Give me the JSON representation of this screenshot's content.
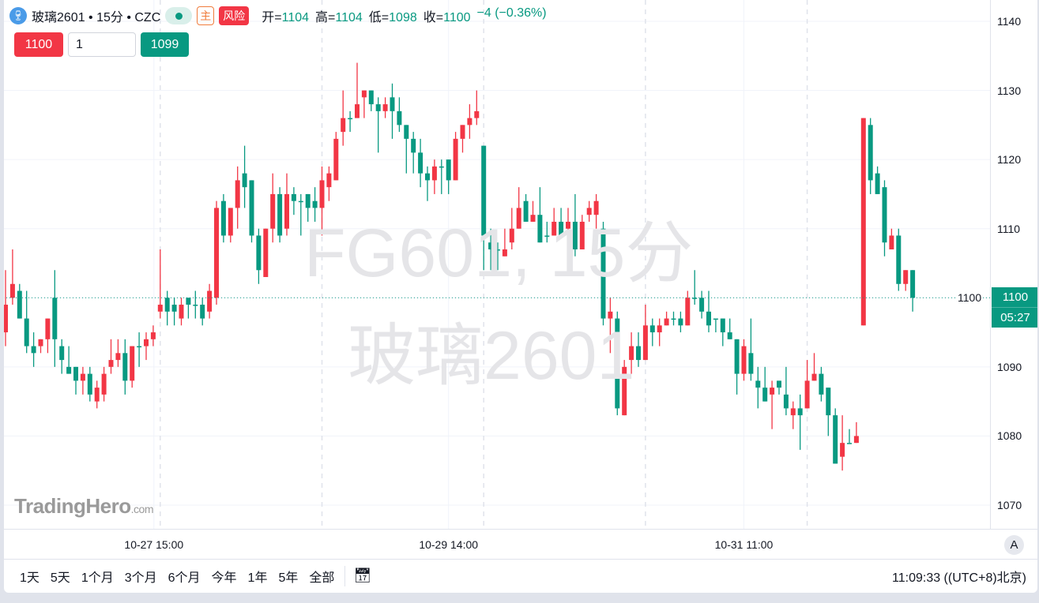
{
  "header": {
    "symbol_icon": "wine-glass-icon",
    "title": "玻璃2601 • 15分 • CZC",
    "main_badge": "主",
    "risk_badge": "风险",
    "ohlc": [
      {
        "label": "开=",
        "value": "1104"
      },
      {
        "label": "高=",
        "value": "1104"
      },
      {
        "label": "低=",
        "value": "1098"
      },
      {
        "label": "收=",
        "value": "1100"
      }
    ],
    "change": "−4 (−0.36%)"
  },
  "trade": {
    "sell_price": "1100",
    "quantity": "1",
    "buy_price": "1099"
  },
  "watermark": {
    "line1": "FG601, 15分",
    "line2": "玻璃2601"
  },
  "logo": {
    "name": "TradingHero",
    "suffix": ".com"
  },
  "price_axis": {
    "labels": [
      "1140",
      "1130",
      "1120",
      "1110",
      "1100",
      "1090",
      "1080",
      "1070"
    ],
    "current_price": "1100",
    "countdown": "05:27"
  },
  "time_axis": {
    "labels": [
      {
        "text": "10-27 15:00",
        "bar": 21.1
      },
      {
        "text": "10-29 14:00",
        "bar": 63
      },
      {
        "text": "10-31 11:00",
        "bar": 105
      }
    ],
    "auto_button": "A"
  },
  "footer": {
    "ranges": [
      "1天",
      "5天",
      "1个月",
      "3个月",
      "6个月",
      "今年",
      "1年",
      "5年",
      "全部"
    ],
    "date_range_icon": "calendar-arrow-icon",
    "clock": "11:09:33 ((UTC+8)北京)"
  },
  "colors": {
    "up": "#f23645",
    "down": "#089981",
    "last_price": "#089981"
  },
  "chart_data": {
    "type": "candlestick",
    "interval": "15分",
    "ylim": [
      1066.6,
      1143.1
    ],
    "yticks": [
      1070,
      1080,
      1090,
      1100,
      1110,
      1120,
      1130,
      1140
    ],
    "last_price": 1100,
    "grid": true,
    "ohlc_format": [
      "open",
      "high",
      "low",
      "close"
    ],
    "candles": [
      [
        1095,
        1104,
        1093,
        1099
      ],
      [
        1100,
        1107,
        1099,
        1102
      ],
      [
        1101,
        1102,
        1097,
        1097
      ],
      [
        1097,
        1101,
        1092,
        1093
      ],
      [
        1093,
        1095,
        1090,
        1092
      ],
      [
        1093,
        1094,
        1092,
        1094
      ],
      [
        1094,
        1097,
        1092,
        1097
      ],
      [
        1100,
        1104,
        1090,
        1094
      ],
      [
        1093,
        1094,
        1089,
        1091
      ],
      [
        1090,
        1093,
        1089,
        1089
      ],
      [
        1090,
        1090,
        1086,
        1088
      ],
      [
        1088,
        1090,
        1086,
        1089
      ],
      [
        1089,
        1090,
        1085,
        1086
      ],
      [
        1085,
        1088,
        1084,
        1087
      ],
      [
        1086,
        1090,
        1085,
        1089
      ],
      [
        1090,
        1094,
        1089,
        1091
      ],
      [
        1091,
        1094,
        1090,
        1092
      ],
      [
        1092,
        1094,
        1086,
        1088
      ],
      [
        1088,
        1093,
        1087,
        1093
      ],
      [
        1093,
        1095,
        1090,
        1093
      ],
      [
        1093,
        1095,
        1091,
        1094
      ],
      [
        1094,
        1096,
        1093,
        1095
      ],
      [
        1098,
        1107,
        1097,
        1099
      ],
      [
        1100,
        1101,
        1096,
        1098
      ],
      [
        1099,
        1100,
        1096,
        1098
      ],
      [
        1097,
        1100,
        1096,
        1099
      ],
      [
        1100,
        1100,
        1097,
        1099
      ],
      [
        1099,
        1101,
        1097,
        1099
      ],
      [
        1099,
        1100,
        1096,
        1097
      ],
      [
        1098,
        1102,
        1097,
        1101
      ],
      [
        1100,
        1114,
        1099,
        1113
      ],
      [
        1114,
        1115,
        1108,
        1109
      ],
      [
        1109,
        1113,
        1108,
        1113
      ],
      [
        1113,
        1119,
        1110,
        1117
      ],
      [
        1118,
        1122,
        1113,
        1116
      ],
      [
        1117,
        1117,
        1108,
        1109
      ],
      [
        1109,
        1110,
        1102,
        1104
      ],
      [
        1103,
        1110,
        1103,
        1110
      ],
      [
        1110,
        1118,
        1108,
        1115
      ],
      [
        1115,
        1116,
        1108,
        1109
      ],
      [
        1110,
        1118,
        1109,
        1115
      ],
      [
        1115,
        1116,
        1112,
        1114
      ],
      [
        1114,
        1115,
        1109,
        1114
      ],
      [
        1115,
        1115,
        1111,
        1113
      ],
      [
        1114,
        1116,
        1111,
        1113
      ],
      [
        1113,
        1119,
        1109,
        1117
      ],
      [
        1116,
        1119,
        1114,
        1118
      ],
      [
        1117,
        1124,
        1117,
        1123
      ],
      [
        1124,
        1130,
        1122,
        1126
      ],
      [
        1126,
        1127,
        1124,
        1126
      ],
      [
        1126,
        1134,
        1126,
        1128
      ],
      [
        1129,
        1130,
        1126,
        1130
      ],
      [
        1130,
        1130,
        1127,
        1128
      ],
      [
        1128,
        1129,
        1121,
        1127
      ],
      [
        1127,
        1129,
        1126,
        1128
      ],
      [
        1129,
        1131,
        1123,
        1127
      ],
      [
        1127,
        1129,
        1124,
        1125
      ],
      [
        1125,
        1125,
        1118,
        1123
      ],
      [
        1123,
        1124,
        1118,
        1121
      ],
      [
        1121,
        1123,
        1116,
        1118
      ],
      [
        1118,
        1119,
        1114,
        1117
      ],
      [
        1117,
        1120,
        1115,
        1119
      ],
      [
        1119,
        1120,
        1115,
        1119
      ],
      [
        1120,
        1120,
        1115,
        1117
      ],
      [
        1117,
        1124,
        1117,
        1123
      ],
      [
        1123,
        1125,
        1121,
        1125
      ],
      [
        1125,
        1128,
        1123,
        1126
      ],
      [
        1126,
        1130,
        1125,
        1127
      ],
      [
        1122,
        1122,
        1104,
        1109
      ],
      [
        1108,
        1110,
        1104,
        1107
      ],
      [
        1107,
        1108,
        1104,
        1107
      ],
      [
        1106,
        1110,
        1106,
        1107
      ],
      [
        1108,
        1113,
        1107,
        1110
      ],
      [
        1110,
        1116,
        1110,
        1113
      ],
      [
        1114,
        1115,
        1111,
        1111
      ],
      [
        1111,
        1114,
        1111,
        1112
      ],
      [
        1112,
        1116,
        1108,
        1108
      ],
      [
        1109,
        1111,
        1108,
        1109
      ],
      [
        1109,
        1113,
        1109,
        1111
      ],
      [
        1111,
        1113,
        1109,
        1109
      ],
      [
        1110,
        1113,
        1109,
        1111
      ],
      [
        1111,
        1115,
        1106,
        1107
      ],
      [
        1107,
        1112,
        1107,
        1111
      ],
      [
        1112,
        1114,
        1111,
        1113
      ],
      [
        1112,
        1115,
        1110,
        1114
      ],
      [
        1110,
        1111,
        1096,
        1097
      ],
      [
        1097,
        1100,
        1092,
        1098
      ],
      [
        1097,
        1098,
        1083,
        1084
      ],
      [
        1083,
        1091,
        1083,
        1090
      ],
      [
        1091,
        1095,
        1089,
        1093
      ],
      [
        1093,
        1095,
        1090,
        1091
      ],
      [
        1091,
        1099,
        1091,
        1096
      ],
      [
        1096,
        1097,
        1093,
        1095
      ],
      [
        1095,
        1097,
        1093,
        1096
      ],
      [
        1096,
        1098,
        1096,
        1097
      ],
      [
        1097,
        1098,
        1096,
        1097
      ],
      [
        1097,
        1098,
        1095,
        1096
      ],
      [
        1096,
        1101,
        1096,
        1100
      ],
      [
        1100,
        1104,
        1099,
        1100
      ],
      [
        1100,
        1101,
        1097,
        1098
      ],
      [
        1098,
        1101,
        1095,
        1096
      ],
      [
        1097,
        1097,
        1095,
        1097
      ],
      [
        1097,
        1097,
        1093,
        1095
      ],
      [
        1095,
        1097,
        1094,
        1094
      ],
      [
        1094,
        1094,
        1086,
        1089
      ],
      [
        1089,
        1094,
        1088,
        1093
      ],
      [
        1092,
        1097,
        1088,
        1089
      ],
      [
        1088,
        1090,
        1084,
        1087
      ],
      [
        1087,
        1090,
        1085,
        1085
      ],
      [
        1086,
        1088,
        1081,
        1087
      ],
      [
        1088,
        1088,
        1086,
        1087
      ],
      [
        1086,
        1090,
        1083,
        1084
      ],
      [
        1083,
        1085,
        1081,
        1084
      ],
      [
        1084,
        1086,
        1078,
        1083
      ],
      [
        1084,
        1091,
        1084,
        1088
      ],
      [
        1088,
        1092,
        1088,
        1089
      ],
      [
        1089,
        1090,
        1085,
        1086
      ],
      [
        1087,
        1087,
        1080,
        1083
      ],
      [
        1083,
        1084,
        1076,
        1076
      ],
      [
        1077,
        1083,
        1075,
        1079
      ],
      [
        1079,
        1081,
        1079,
        1079
      ],
      [
        1079,
        1082,
        1079,
        1080
      ],
      [
        1096,
        1126,
        1096,
        1126
      ],
      [
        1125,
        1126,
        1115,
        1117
      ],
      [
        1118,
        1119,
        1115,
        1115
      ],
      [
        1116,
        1117,
        1106,
        1108
      ],
      [
        1107,
        1110,
        1107,
        1109
      ],
      [
        1109,
        1110,
        1101,
        1102
      ],
      [
        1102,
        1104,
        1101,
        1104
      ],
      [
        1104,
        1104,
        1098,
        1100
      ]
    ]
  }
}
